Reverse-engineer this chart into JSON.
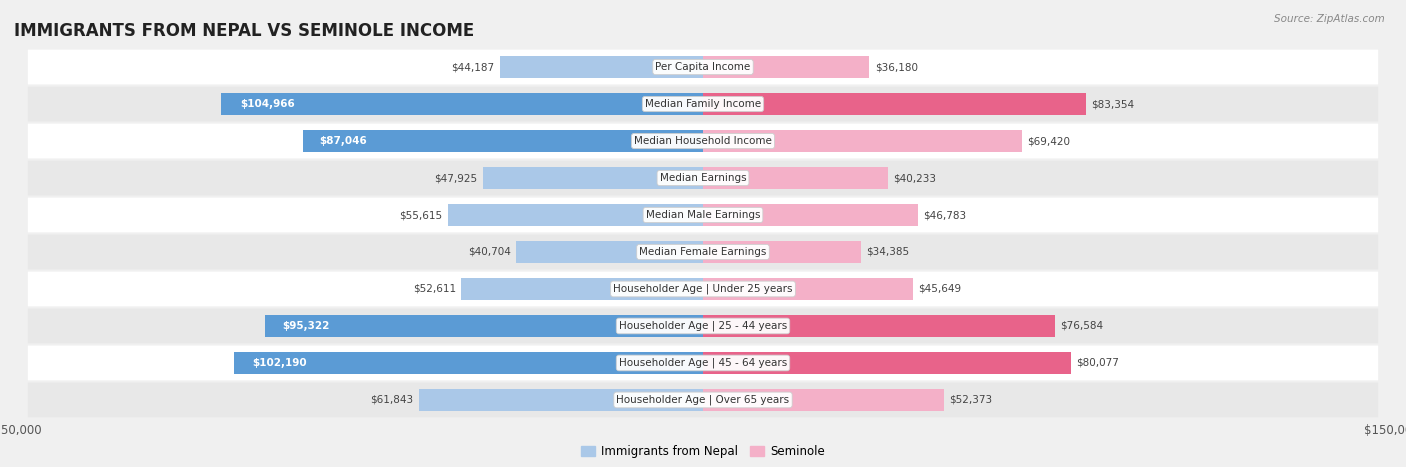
{
  "title": "IMMIGRANTS FROM NEPAL VS SEMINOLE INCOME",
  "source": "Source: ZipAtlas.com",
  "categories": [
    "Per Capita Income",
    "Median Family Income",
    "Median Household Income",
    "Median Earnings",
    "Median Male Earnings",
    "Median Female Earnings",
    "Householder Age | Under 25 years",
    "Householder Age | 25 - 44 years",
    "Householder Age | 45 - 64 years",
    "Householder Age | Over 65 years"
  ],
  "nepal_values": [
    44187,
    104966,
    87046,
    47925,
    55615,
    40704,
    52611,
    95322,
    102190,
    61843
  ],
  "seminole_values": [
    36180,
    83354,
    69420,
    40233,
    46783,
    34385,
    45649,
    76584,
    80077,
    52373
  ],
  "nepal_labels": [
    "$44,187",
    "$104,966",
    "$87,046",
    "$47,925",
    "$55,615",
    "$40,704",
    "$52,611",
    "$95,322",
    "$102,190",
    "$61,843"
  ],
  "seminole_labels": [
    "$36,180",
    "$83,354",
    "$69,420",
    "$40,233",
    "$46,783",
    "$34,385",
    "$45,649",
    "$76,584",
    "$80,077",
    "$52,373"
  ],
  "nepal_color_light": "#aac8e8",
  "nepal_color_dark": "#5b9bd5",
  "seminole_color_light": "#f4b0c8",
  "seminole_color_dark": "#e8638a",
  "nepal_dark_threshold": 75000,
  "seminole_dark_threshold": 75000,
  "xlim": 150000,
  "bar_height": 0.58,
  "background_color": "#f0f0f0",
  "row_bg_light": "#ffffff",
  "row_bg_dark": "#e8e8e8",
  "title_fontsize": 12,
  "label_fontsize": 7.5,
  "category_fontsize": 7.5,
  "legend_nepal": "Immigrants from Nepal",
  "legend_seminole": "Seminole"
}
